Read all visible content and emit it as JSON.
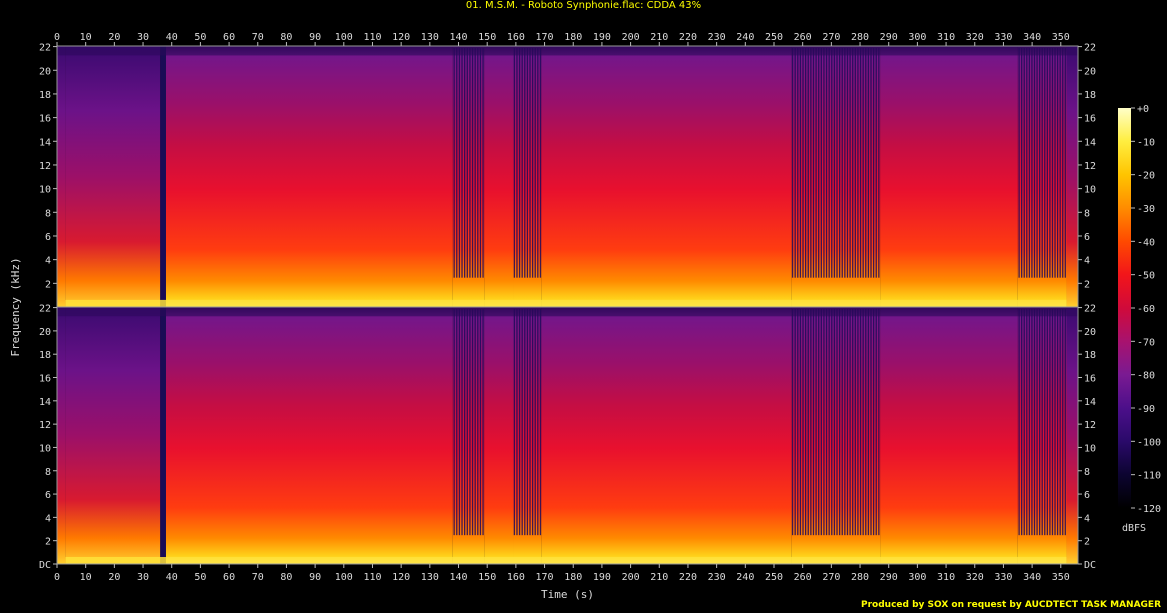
{
  "title": "01. M.S.M. - Roboto Synphonie.flac: CDDA 43%",
  "footer": "Produced by SOX on request by AUCDTECT TASK MANAGER",
  "chart_data": {
    "type": "heatmap",
    "subtype": "spectrogram",
    "channels": 2,
    "xlabel": "Time (s)",
    "ylabel": "Frequency (kHz)",
    "xlim": [
      0,
      356
    ],
    "ylim_khz": [
      0,
      22.05
    ],
    "x_ticks": [
      0,
      10,
      20,
      30,
      40,
      50,
      60,
      70,
      80,
      90,
      100,
      110,
      120,
      130,
      140,
      150,
      160,
      170,
      180,
      190,
      200,
      210,
      220,
      230,
      240,
      250,
      260,
      270,
      280,
      290,
      300,
      310,
      320,
      330,
      340,
      350
    ],
    "y_ticks": [
      {
        "value": 0,
        "label": "DC"
      },
      {
        "value": 2,
        "label": "2"
      },
      {
        "value": 4,
        "label": "4"
      },
      {
        "value": 6,
        "label": "6"
      },
      {
        "value": 8,
        "label": "8"
      },
      {
        "value": 10,
        "label": "10"
      },
      {
        "value": 12,
        "label": "12"
      },
      {
        "value": 14,
        "label": "14"
      },
      {
        "value": 16,
        "label": "16"
      },
      {
        "value": 18,
        "label": "18"
      },
      {
        "value": 20,
        "label": "20"
      },
      {
        "value": 22,
        "label": "22"
      }
    ],
    "colorbar": {
      "label": "dBFS",
      "range": [
        -120,
        0
      ],
      "ticks": [
        {
          "value": 0,
          "label": "+0"
        },
        {
          "value": -10,
          "label": "-10"
        },
        {
          "value": -20,
          "label": "-20"
        },
        {
          "value": -30,
          "label": "-30"
        },
        {
          "value": -40,
          "label": "-40"
        },
        {
          "value": -50,
          "label": "-50"
        },
        {
          "value": -60,
          "label": "-60"
        },
        {
          "value": -70,
          "label": "-70"
        },
        {
          "value": -80,
          "label": "-80"
        },
        {
          "value": -90,
          "label": "-90"
        },
        {
          "value": -100,
          "label": "-100"
        },
        {
          "value": -110,
          "label": "-110"
        },
        {
          "value": -120,
          "label": "-120"
        }
      ],
      "stops": [
        "#000000",
        "#0c0430",
        "#2a0a6a",
        "#4c0f8a",
        "#7a1a92",
        "#a8126e",
        "#d00a3a",
        "#f2151a",
        "#ff4a00",
        "#ff8c00",
        "#ffc400",
        "#ffee40",
        "#ffffc8"
      ]
    },
    "sections": [
      {
        "t_start": 0,
        "t_end": 3,
        "character": "fade-in, quiet"
      },
      {
        "t_start": 3,
        "t_end": 36,
        "character": "intro, low-mid energy, dark upper band"
      },
      {
        "t_start": 36,
        "t_end": 38,
        "character": "dark gap"
      },
      {
        "t_start": 38,
        "t_end": 138,
        "character": "full band, loud"
      },
      {
        "t_start": 138,
        "t_end": 149,
        "character": "rhythmic gaps"
      },
      {
        "t_start": 149,
        "t_end": 159,
        "character": "full band"
      },
      {
        "t_start": 159,
        "t_end": 169,
        "character": "rhythmic gaps"
      },
      {
        "t_start": 169,
        "t_end": 256,
        "character": "full band, loud"
      },
      {
        "t_start": 256,
        "t_end": 287,
        "character": "rhythmic gaps"
      },
      {
        "t_start": 287,
        "t_end": 335,
        "character": "full band"
      },
      {
        "t_start": 335,
        "t_end": 352,
        "character": "rhythmic gaps, fading"
      },
      {
        "t_start": 352,
        "t_end": 356,
        "character": "fade-out"
      }
    ]
  }
}
